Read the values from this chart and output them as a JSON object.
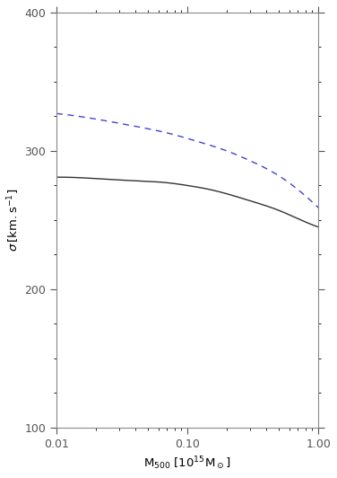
{
  "x_min": 0.01,
  "x_max": 1.0,
  "y_min": 100,
  "y_max": 400,
  "background_color": "#ffffff",
  "axes_color": "#555555",
  "line1_color": "#333333",
  "line2_color": "#4444cc",
  "line1_x": [
    0.01,
    0.02,
    0.03,
    0.05,
    0.07,
    0.1,
    0.15,
    0.2,
    0.3,
    0.5,
    0.7,
    1.0
  ],
  "line1_y": [
    281,
    280,
    279,
    278,
    277,
    275,
    272,
    269,
    264,
    257,
    251,
    245
  ],
  "line2_x": [
    0.01,
    0.02,
    0.03,
    0.05,
    0.07,
    0.1,
    0.15,
    0.2,
    0.3,
    0.5,
    0.7,
    1.0
  ],
  "line2_y": [
    327,
    323,
    320,
    316,
    313,
    309,
    304,
    300,
    293,
    282,
    272,
    259
  ],
  "yticks": [
    100,
    200,
    300,
    400
  ],
  "xticks": [
    0.01,
    0.1,
    1.0
  ],
  "xtick_labels": [
    "0.01",
    "0.10",
    "1.00"
  ]
}
